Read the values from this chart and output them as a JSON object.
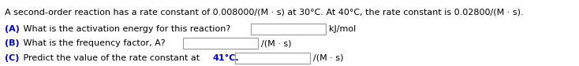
{
  "line1": "A second-order reaction has a rate constant of 0.008000/(M · s) at 30°C. At 40°C, the rate constant is 0.02800/(M · s).",
  "a_label": "(A)",
  "a_text": " What is the activation energy for this reaction?",
  "a_suffix": "kJ/mol",
  "b_label": "(B)",
  "b_text": " What is the frequency factor, A?",
  "b_suffix": "/(M · s)",
  "c_label": "(C)",
  "c_text": " Predict the value of the rate constant at ",
  "c_highlight": "41°C.",
  "c_suffix": "/(M · s)",
  "label_color": "#0000CC",
  "text_color": "#000000",
  "bg_color": "#ffffff",
  "font_size": 8.0,
  "fig_width": 7.34,
  "fig_height": 0.84
}
